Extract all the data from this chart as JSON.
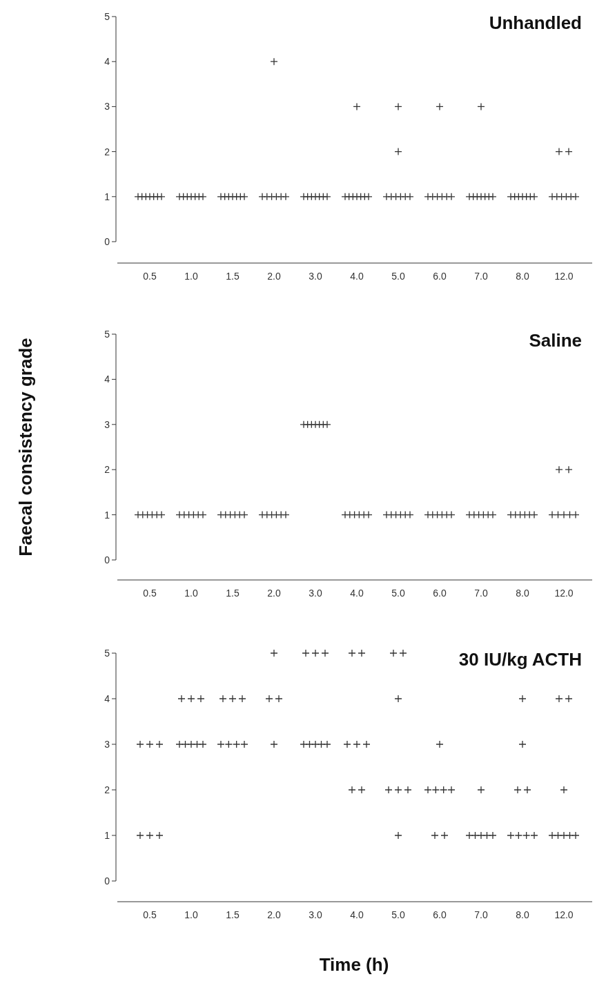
{
  "chart_data": [
    {
      "type": "scatter",
      "title": "Unhandled",
      "categories": [
        "0.5",
        "1.0",
        "1.5",
        "2.0",
        "3.0",
        "4.0",
        "5.0",
        "6.0",
        "7.0",
        "8.0",
        "12.0"
      ],
      "ylim": [
        0,
        5
      ],
      "yticks": [
        0,
        1,
        2,
        3,
        4,
        5
      ],
      "marker": "cross",
      "series": [
        {
          "color": "#333333",
          "x": [
            "0.5",
            "0.5",
            "0.5",
            "0.5",
            "0.5",
            "0.5",
            "0.5",
            "1.0",
            "1.0",
            "1.0",
            "1.0",
            "1.0",
            "1.0",
            "1.0",
            "1.5",
            "1.5",
            "1.5",
            "1.5",
            "1.5",
            "1.5",
            "1.5",
            "2.0",
            "2.0",
            "2.0",
            "2.0",
            "2.0",
            "2.0",
            "2.0",
            "3.0",
            "3.0",
            "3.0",
            "3.0",
            "3.0",
            "3.0",
            "3.0",
            "4.0",
            "4.0",
            "4.0",
            "4.0",
            "4.0",
            "4.0",
            "4.0",
            "4.0",
            "5.0",
            "5.0",
            "5.0",
            "5.0",
            "5.0",
            "5.0",
            "5.0",
            "5.0",
            "6.0",
            "6.0",
            "6.0",
            "6.0",
            "6.0",
            "6.0",
            "6.0",
            "7.0",
            "7.0",
            "7.0",
            "7.0",
            "7.0",
            "7.0",
            "7.0",
            "7.0",
            "8.0",
            "8.0",
            "8.0",
            "8.0",
            "8.0",
            "8.0",
            "8.0",
            "12.0",
            "12.0",
            "12.0",
            "12.0",
            "12.0",
            "12.0",
            "12.0",
            "12.0"
          ],
          "values": [
            1,
            1,
            1,
            1,
            1,
            1,
            1,
            1,
            1,
            1,
            1,
            1,
            1,
            1,
            1,
            1,
            1,
            1,
            1,
            1,
            1,
            4,
            1,
            1,
            1,
            1,
            1,
            1,
            1,
            1,
            1,
            1,
            1,
            1,
            1,
            3,
            1,
            1,
            1,
            1,
            1,
            1,
            1,
            3,
            2,
            1,
            1,
            1,
            1,
            1,
            1,
            3,
            1,
            1,
            1,
            1,
            1,
            1,
            3,
            1,
            1,
            1,
            1,
            1,
            1,
            1,
            1,
            1,
            1,
            1,
            1,
            1,
            1,
            2,
            2,
            1,
            1,
            1,
            1,
            1,
            1
          ]
        }
      ]
    },
    {
      "type": "scatter",
      "title": "Saline",
      "ylabel": "Faecal consistency grade",
      "categories": [
        "0.5",
        "1.0",
        "1.5",
        "2.0",
        "3.0",
        "4.0",
        "5.0",
        "6.0",
        "7.0",
        "8.0",
        "12.0"
      ],
      "ylim": [
        0,
        5
      ],
      "yticks": [
        0,
        1,
        2,
        3,
        4,
        5
      ],
      "marker": "cross",
      "series": [
        {
          "color": "#333333",
          "x": [
            "0.5",
            "0.5",
            "0.5",
            "0.5",
            "0.5",
            "0.5",
            "1.0",
            "1.0",
            "1.0",
            "1.0",
            "1.0",
            "1.0",
            "1.5",
            "1.5",
            "1.5",
            "1.5",
            "1.5",
            "1.5",
            "2.0",
            "2.0",
            "2.0",
            "2.0",
            "2.0",
            "2.0",
            "3.0",
            "3.0",
            "3.0",
            "3.0",
            "3.0",
            "3.0",
            "3.0",
            "4.0",
            "4.0",
            "4.0",
            "4.0",
            "4.0",
            "4.0",
            "5.0",
            "5.0",
            "5.0",
            "5.0",
            "5.0",
            "5.0",
            "6.0",
            "6.0",
            "6.0",
            "6.0",
            "6.0",
            "6.0",
            "7.0",
            "7.0",
            "7.0",
            "7.0",
            "7.0",
            "7.0",
            "8.0",
            "8.0",
            "8.0",
            "8.0",
            "8.0",
            "8.0",
            "12.0",
            "12.0",
            "12.0",
            "12.0",
            "12.0",
            "12.0",
            "12.0"
          ],
          "values": [
            1,
            1,
            1,
            1,
            1,
            1,
            1,
            1,
            1,
            1,
            1,
            1,
            1,
            1,
            1,
            1,
            1,
            1,
            1,
            1,
            1,
            1,
            1,
            1,
            3,
            3,
            3,
            3,
            3,
            3,
            3,
            1,
            1,
            1,
            1,
            1,
            1,
            1,
            1,
            1,
            1,
            1,
            1,
            1,
            1,
            1,
            1,
            1,
            1,
            1,
            1,
            1,
            1,
            1,
            1,
            1,
            1,
            1,
            1,
            1,
            1,
            2,
            2,
            1,
            1,
            1,
            1,
            1
          ]
        }
      ]
    },
    {
      "type": "scatter",
      "title": "30 IU/kg ACTH",
      "xlabel": "Time (h)",
      "categories": [
        "0.5",
        "1.0",
        "1.5",
        "2.0",
        "3.0",
        "4.0",
        "5.0",
        "6.0",
        "7.0",
        "8.0",
        "12.0"
      ],
      "ylim": [
        0,
        5
      ],
      "yticks": [
        0,
        1,
        2,
        3,
        4,
        5
      ],
      "marker": "cross",
      "series": [
        {
          "color": "#333333",
          "x": [
            "0.5",
            "0.5",
            "0.5",
            "0.5",
            "0.5",
            "0.5",
            "1.0",
            "1.0",
            "1.0",
            "1.0",
            "1.0",
            "1.0",
            "1.0",
            "1.0",
            "1.5",
            "1.5",
            "1.5",
            "1.5",
            "1.5",
            "1.5",
            "1.5",
            "2.0",
            "2.0",
            "2.0",
            "2.0",
            "3.0",
            "3.0",
            "3.0",
            "3.0",
            "3.0",
            "3.0",
            "3.0",
            "3.0",
            "4.0",
            "4.0",
            "4.0",
            "4.0",
            "4.0",
            "4.0",
            "4.0",
            "5.0",
            "5.0",
            "5.0",
            "5.0",
            "5.0",
            "5.0",
            "5.0",
            "6.0",
            "6.0",
            "6.0",
            "6.0",
            "6.0",
            "6.0",
            "6.0",
            "7.0",
            "7.0",
            "7.0",
            "7.0",
            "7.0",
            "7.0",
            "8.0",
            "8.0",
            "8.0",
            "8.0",
            "8.0",
            "8.0",
            "8.0",
            "8.0",
            "12.0",
            "12.0",
            "12.0",
            "12.0",
            "12.0",
            "12.0",
            "12.0",
            "12.0"
          ],
          "values": [
            3,
            3,
            3,
            1,
            1,
            1,
            4,
            4,
            4,
            3,
            3,
            3,
            3,
            3,
            4,
            4,
            4,
            3,
            3,
            3,
            3,
            5,
            4,
            4,
            3,
            5,
            5,
            5,
            3,
            3,
            3,
            3,
            3,
            5,
            5,
            3,
            3,
            3,
            2,
            2,
            5,
            5,
            4,
            2,
            2,
            2,
            1,
            3,
            2,
            2,
            2,
            2,
            1,
            1,
            2,
            1,
            1,
            1,
            1,
            1,
            4,
            3,
            2,
            2,
            1,
            1,
            1,
            1,
            4,
            4,
            2,
            1,
            1,
            1,
            1,
            1
          ]
        }
      ]
    }
  ]
}
